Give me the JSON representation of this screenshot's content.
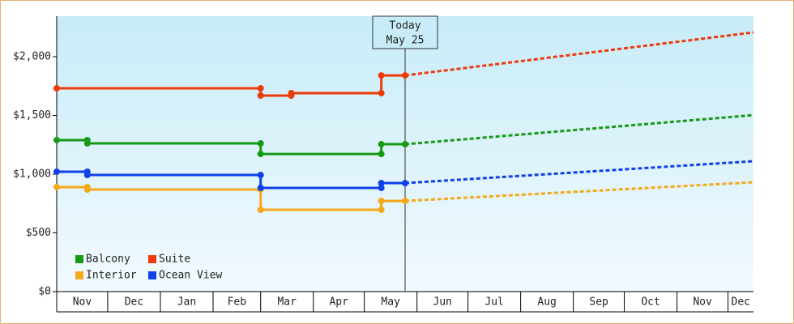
{
  "chart_data": {
    "type": "step-line",
    "xlim": [
      0,
      410
    ],
    "ylim": [
      0,
      2345
    ],
    "xticks": [
      {
        "value": 0,
        "label": "Nov"
      },
      {
        "value": 30,
        "label": "Dec"
      },
      {
        "value": 61,
        "label": "Jan"
      },
      {
        "value": 92,
        "label": "Feb"
      },
      {
        "value": 120,
        "label": "Mar"
      },
      {
        "value": 151,
        "label": "Apr"
      },
      {
        "value": 181,
        "label": "May"
      },
      {
        "value": 212,
        "label": "Jun"
      },
      {
        "value": 242,
        "label": "Jul"
      },
      {
        "value": 273,
        "label": "Aug"
      },
      {
        "value": 304,
        "label": "Sep"
      },
      {
        "value": 334,
        "label": "Oct"
      },
      {
        "value": 365,
        "label": "Nov"
      },
      {
        "value": 395,
        "label": "Dec"
      }
    ],
    "yticks": [
      {
        "value": 0,
        "label": "$0"
      },
      {
        "value": 500,
        "label": "$500"
      },
      {
        "value": 1000,
        "label": "$1,000"
      },
      {
        "value": 1500,
        "label": "$1,500"
      },
      {
        "value": 2000,
        "label": "$2,000"
      }
    ],
    "today": {
      "x": 205,
      "label": [
        "Today",
        "May 25"
      ]
    },
    "legend": "bottom-left",
    "series": [
      {
        "name": "Balcony",
        "color": "#169a16",
        "x": [
          0,
          18,
          18,
          120,
          120,
          191,
          191,
          205
        ],
        "values": [
          1290,
          1290,
          1262,
          1262,
          1172,
          1172,
          1255,
          1255
        ],
        "projection": {
          "x": [
            205,
            410
          ],
          "values": [
            1255,
            1503
          ]
        }
      },
      {
        "name": "Suite",
        "color": "#ee3a0a",
        "x": [
          0,
          120,
          120,
          138,
          138,
          191,
          191,
          205
        ],
        "values": [
          1731,
          1731,
          1669,
          1669,
          1690,
          1690,
          1841,
          1841
        ],
        "projection": {
          "x": [
            205,
            410
          ],
          "values": [
            1841,
            2207
          ]
        }
      },
      {
        "name": "Interior",
        "color": "#f5a81a",
        "x": [
          0,
          18,
          18,
          120,
          120,
          191,
          191,
          205
        ],
        "values": [
          890,
          890,
          869,
          869,
          697,
          697,
          772,
          772
        ],
        "projection": {
          "x": [
            205,
            410
          ],
          "values": [
            772,
            931
          ]
        }
      },
      {
        "name": "Ocean View",
        "color": "#1040e8",
        "x": [
          0,
          18,
          18,
          120,
          120,
          191,
          191,
          205
        ],
        "values": [
          1021,
          1021,
          993,
          993,
          883,
          883,
          924,
          924
        ],
        "projection": {
          "x": [
            205,
            410
          ],
          "values": [
            924,
            1110
          ]
        }
      }
    ]
  }
}
